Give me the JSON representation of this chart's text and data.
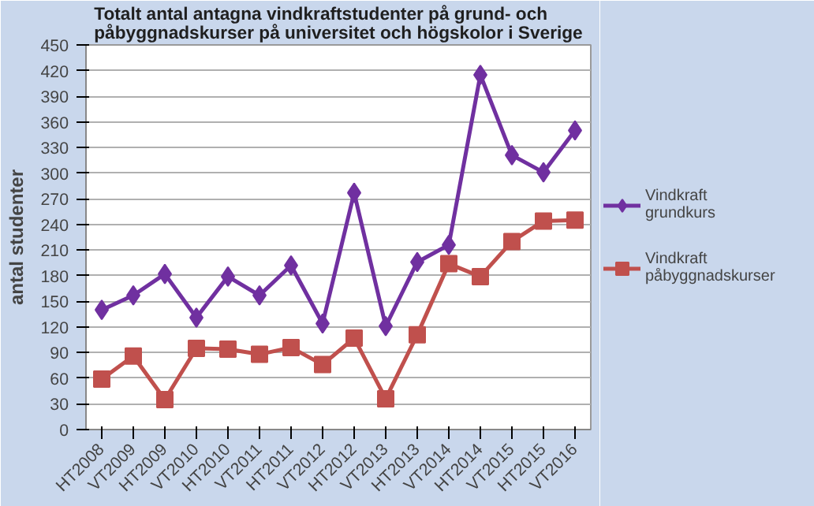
{
  "chart_data": {
    "type": "line",
    "title": "Totalt antal antagna vindkraftstudenter på grund- och påbyggnadskurser på universitet och högskolor i Sverige",
    "ylabel": "antal studenter",
    "categories": [
      "HT2008",
      "VT2009",
      "HT2009",
      "VT2010",
      "HT2010",
      "VT2011",
      "HT2011",
      "VT2012",
      "HT2012",
      "VT2013",
      "HT2013",
      "VT2014",
      "HT2014",
      "VT2015",
      "HT2015",
      "VT2016"
    ],
    "series": [
      {
        "name": "Vindkraft grundkurs",
        "color": "#7030a0",
        "marker": "diamond",
        "values": [
          140,
          157,
          182,
          131,
          179,
          157,
          192,
          124,
          277,
          121,
          196,
          216,
          415,
          321,
          301,
          350
        ]
      },
      {
        "name": "Vindkraft påbyggnadskurser",
        "color": "#c0504d",
        "marker": "square",
        "values": [
          59,
          86,
          35,
          95,
          94,
          88,
          96,
          76,
          107,
          36,
          111,
          194,
          179,
          220,
          244,
          245
        ]
      }
    ],
    "ylim": [
      0,
      450
    ],
    "yticks": [
      0,
      30,
      60,
      90,
      120,
      150,
      180,
      210,
      240,
      270,
      300,
      330,
      360,
      390,
      420,
      450
    ],
    "grid": "y",
    "legend": "right"
  }
}
